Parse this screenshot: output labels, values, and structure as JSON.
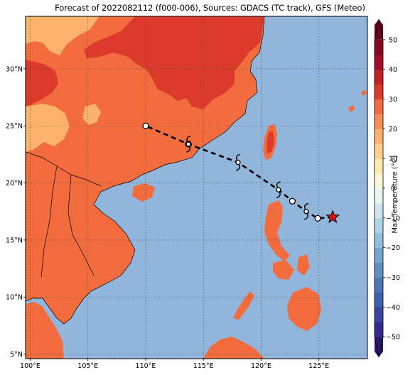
{
  "title": "Forecast of 2022082112 (f000-006), Sources: GDACS (TC track), GFS (Meteo)",
  "map": {
    "lon_labels": [
      "100°E",
      "105°E",
      "110°E",
      "115°E",
      "120°E",
      "125°E"
    ],
    "lon_values": [
      100,
      105,
      110,
      115,
      120,
      125
    ],
    "lat_labels": [
      "5°N",
      "10°N",
      "15°N",
      "20°N",
      "25°N",
      "30°N"
    ],
    "lat_values": [
      5,
      10,
      15,
      20,
      25,
      30
    ],
    "extent": {
      "lon_min": 99.6,
      "lon_max": 129.2,
      "lat_min": 4.6,
      "lat_max": 34.6
    },
    "gridlines": "dotted",
    "ocean_color": "#91b5db"
  },
  "storm_track": {
    "points": [
      {
        "lon": 126.2,
        "lat": 17.0,
        "marker": "star"
      },
      {
        "lon": 124.9,
        "lat": 16.9,
        "marker": "circle"
      },
      {
        "lon": 123.9,
        "lat": 17.5,
        "marker": "cyclone"
      },
      {
        "lon": 122.7,
        "lat": 18.4,
        "marker": "circle"
      },
      {
        "lon": 121.5,
        "lat": 19.4,
        "marker": "cyclone"
      },
      {
        "lon": 118.0,
        "lat": 21.8,
        "marker": "cyclone"
      },
      {
        "lon": 113.7,
        "lat": 23.4,
        "marker": "circle"
      },
      {
        "lon": 113.7,
        "lat": 23.4,
        "marker": "cyclone"
      },
      {
        "lon": 110.0,
        "lat": 25.0,
        "marker": "circle"
      }
    ],
    "line_style": "dashed",
    "star_color": "#d9141c"
  },
  "colorbar": {
    "label": "Max Temperature (°C)",
    "ticks": [
      "50",
      "40",
      "30",
      "20",
      "10",
      "0",
      "−10",
      "−20",
      "−30",
      "−40",
      "−50"
    ],
    "tick_values": [
      50,
      40,
      30,
      20,
      10,
      0,
      -10,
      -20,
      -30,
      -40,
      -50
    ],
    "min": -55,
    "max": 55,
    "bands": [
      {
        "from": -55,
        "to": -50,
        "color": "#2a1a6e"
      },
      {
        "from": -50,
        "to": -45,
        "color": "#312b8c"
      },
      {
        "from": -45,
        "to": -40,
        "color": "#3a45a0"
      },
      {
        "from": -40,
        "to": -35,
        "color": "#3f5fae"
      },
      {
        "from": -35,
        "to": -30,
        "color": "#4b79b8"
      },
      {
        "from": -30,
        "to": -25,
        "color": "#5b90c4"
      },
      {
        "from": -25,
        "to": -20,
        "color": "#74a7d0"
      },
      {
        "from": -20,
        "to": -15,
        "color": "#91bfdc"
      },
      {
        "from": -15,
        "to": -10,
        "color": "#afd3e6"
      },
      {
        "from": -10,
        "to": -5,
        "color": "#cfe6ef"
      },
      {
        "from": -5,
        "to": 0,
        "color": "#eaf4f1"
      },
      {
        "from": 0,
        "to": 5,
        "color": "#fbf8d7"
      },
      {
        "from": 5,
        "to": 10,
        "color": "#fee9ae"
      },
      {
        "from": 10,
        "to": 15,
        "color": "#fed08a"
      },
      {
        "from": 15,
        "to": 20,
        "color": "#fdb36c"
      },
      {
        "from": 20,
        "to": 25,
        "color": "#f88f52"
      },
      {
        "from": 25,
        "to": 30,
        "color": "#f26c3e"
      },
      {
        "from": 30,
        "to": 35,
        "color": "#dc3a2b"
      },
      {
        "from": 35,
        "to": 40,
        "color": "#c21f27"
      },
      {
        "from": 40,
        "to": 45,
        "color": "#a20d28"
      },
      {
        "from": 45,
        "to": 50,
        "color": "#850726"
      },
      {
        "from": 50,
        "to": 55,
        "color": "#6b0020"
      }
    ]
  }
}
